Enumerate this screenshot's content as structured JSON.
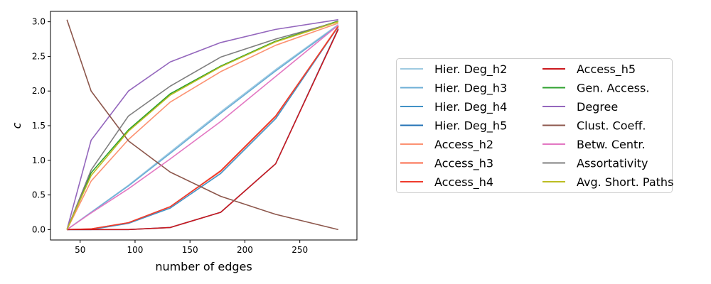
{
  "chart_data": {
    "type": "line",
    "xlabel": "number of edges",
    "ylabel": "c",
    "xlim": [
      23,
      302
    ],
    "ylim": [
      -0.15,
      3.15
    ],
    "xticks": [
      50,
      100,
      150,
      200,
      250
    ],
    "yticks": [
      0.0,
      0.5,
      1.0,
      1.5,
      2.0,
      2.5,
      3.0
    ],
    "xtick_labels": [
      "50",
      "100",
      "150",
      "200",
      "250"
    ],
    "ytick_labels": [
      "0.0",
      "0.5",
      "1.0",
      "1.5",
      "2.0",
      "2.5",
      "3.0"
    ],
    "grid": false,
    "legend_position": "right",
    "x": [
      38,
      60,
      94,
      132,
      178,
      228,
      285
    ],
    "series": [
      {
        "name": "Hier. Deg_h2",
        "color": "#9ecae1",
        "values": [
          0.0,
          0.25,
          0.64,
          1.12,
          1.7,
          2.31,
          2.96
        ]
      },
      {
        "name": "Hier. Deg_h3",
        "color": "#6baed6",
        "values": [
          0.0,
          0.25,
          0.63,
          1.1,
          1.68,
          2.29,
          2.95
        ]
      },
      {
        "name": "Hier. Deg_h4",
        "color": "#4292c6",
        "values": [
          0.0,
          0.0,
          0.09,
          0.31,
          0.81,
          1.6,
          2.93
        ]
      },
      {
        "name": "Hier. Deg_h5",
        "color": "#2171b5",
        "values": [
          0.0,
          0.0,
          0.0,
          0.03,
          0.25,
          0.95,
          2.9
        ]
      },
      {
        "name": "Access_h2",
        "color": "#fc9272",
        "values": [
          0.0,
          0.7,
          1.3,
          1.84,
          2.28,
          2.66,
          2.98
        ]
      },
      {
        "name": "Access_h3",
        "color": "#fb6a4a",
        "values": [
          0.0,
          0.01,
          0.1,
          0.33,
          0.84,
          1.63,
          2.94
        ]
      },
      {
        "name": "Access_h4",
        "color": "#ef3b2c",
        "values": [
          0.0,
          0.01,
          0.1,
          0.33,
          0.85,
          1.64,
          2.93
        ]
      },
      {
        "name": "Access_h5",
        "color": "#cb181d",
        "values": [
          0.0,
          0.0,
          0.0,
          0.03,
          0.25,
          0.95,
          2.89
        ]
      },
      {
        "name": "Gen. Access.",
        "color": "#2ca02c",
        "values": [
          0.0,
          0.82,
          1.44,
          1.96,
          2.36,
          2.72,
          3.01
        ]
      },
      {
        "name": "Degree",
        "color": "#9467bd",
        "values": [
          0.0,
          1.29,
          2.0,
          2.42,
          2.7,
          2.89,
          3.03
        ]
      },
      {
        "name": "Clust. Coeff.",
        "color": "#8c564b",
        "values": [
          3.03,
          2.0,
          1.28,
          0.83,
          0.48,
          0.22,
          0.0
        ]
      },
      {
        "name": "Betw. Centr.",
        "color": "#e377c2",
        "values": [
          0.0,
          0.24,
          0.59,
          1.02,
          1.56,
          2.21,
          2.95
        ]
      },
      {
        "name": "Assortativity",
        "color": "#7f7f7f",
        "values": [
          0.0,
          0.86,
          1.64,
          2.07,
          2.49,
          2.75,
          3.0
        ]
      },
      {
        "name": "Avg. Short. Paths",
        "color": "#bcbd22",
        "values": [
          0.0,
          0.78,
          1.42,
          1.94,
          2.35,
          2.71,
          3.0
        ]
      }
    ]
  }
}
